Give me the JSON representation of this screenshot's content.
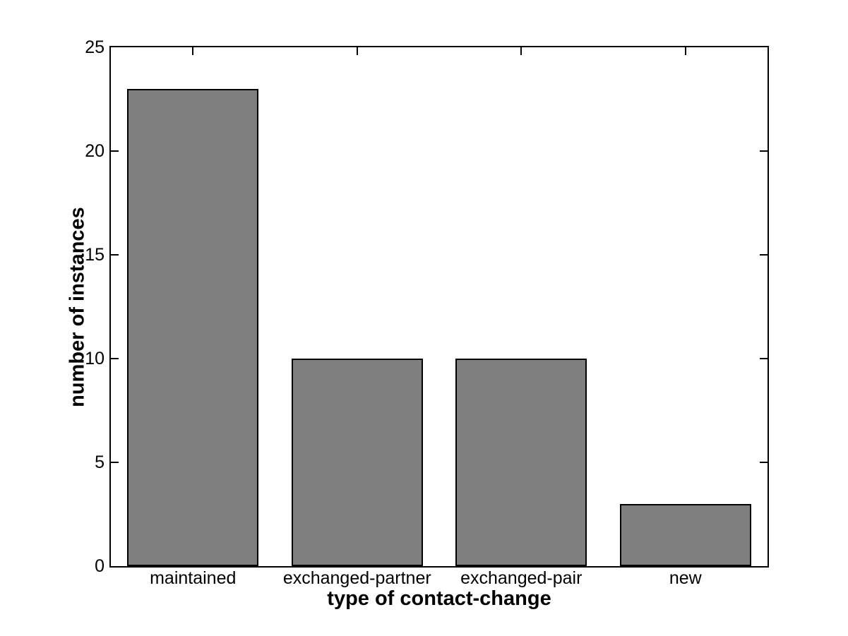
{
  "chart_data": {
    "type": "bar",
    "categories": [
      "maintained",
      "exchanged-partner",
      "exchanged-pair",
      "new"
    ],
    "values": [
      23,
      10,
      10,
      3
    ],
    "xlabel": "type of contact-change",
    "ylabel": "number of instances",
    "ylim": [
      0,
      25
    ],
    "yticks": [
      0,
      5,
      10,
      15,
      20,
      25
    ],
    "grid": false,
    "legend_position": "none",
    "bar_color": "#7f7f7f",
    "bar_edge_color": "#000000",
    "axis_color": "#000000",
    "background_color": "#ffffff",
    "text_color": "#000000"
  }
}
